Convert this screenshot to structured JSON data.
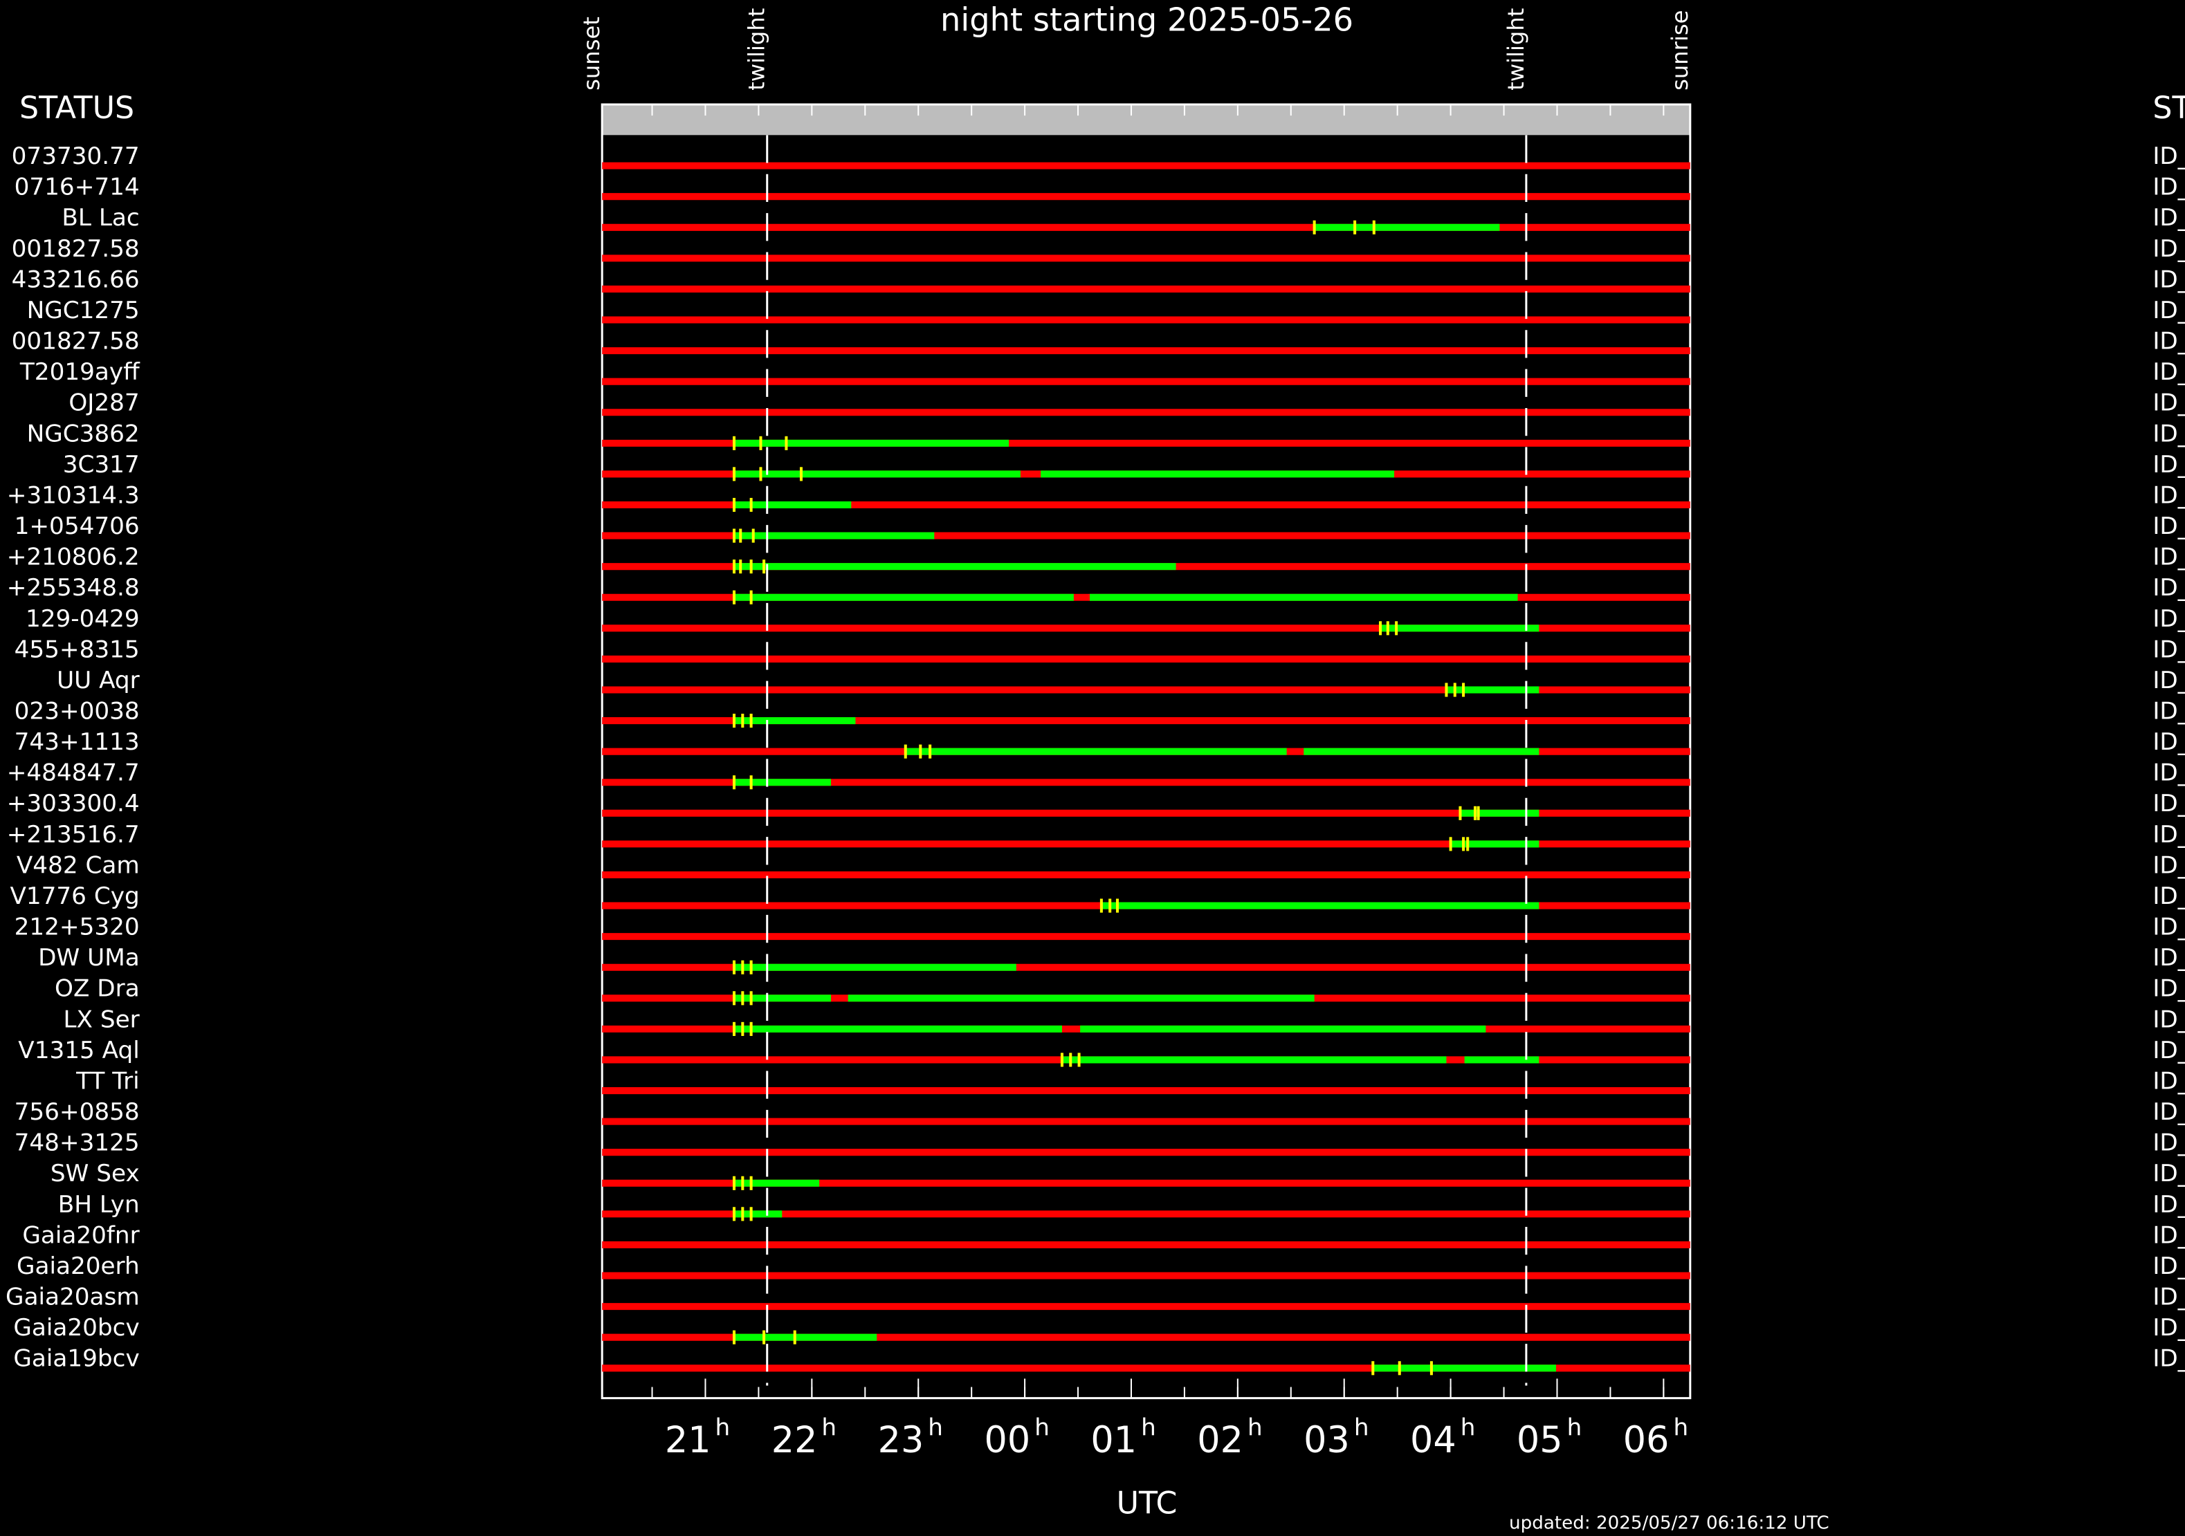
{
  "chart_data": {
    "type": "gantt",
    "title": "night starting 2025-05-26",
    "left_header": "STATUS",
    "right_header": "ST",
    "xlabel": "UTC",
    "footer": "updated: 2025/05/27 06:16:12 UTC",
    "tick_suffix": "h",
    "xlim": [
      20.03,
      30.25
    ],
    "xticks": [
      21,
      22,
      23,
      {
        "value": 24,
        "label": "00"
      },
      {
        "value": 25,
        "label": "01"
      },
      {
        "value": 26,
        "label": "02"
      },
      {
        "value": 27,
        "label": "03"
      },
      {
        "value": 28,
        "label": "04"
      },
      {
        "value": 29,
        "label": "05"
      },
      {
        "value": 30,
        "label": "06"
      }
    ],
    "minor_xticks": [
      20.5,
      21,
      21.5,
      22,
      22.5,
      23,
      23.5,
      24,
      24.5,
      25,
      25.5,
      26,
      26.5,
      27,
      27.5,
      28,
      28.5,
      29,
      29.5,
      30
    ],
    "events": [
      {
        "label": "sunset",
        "value": 20.03
      },
      {
        "label": "twilight",
        "value": 21.58
      },
      {
        "label": "twilight",
        "value": 28.71
      },
      {
        "label": "sunrise",
        "value": 30.25
      }
    ],
    "background_color": "#ff0000",
    "window_color": "#00ff00",
    "marker_color": "#ffff00",
    "rows": [
      {
        "name": "073730.77",
        "status": "ID_",
        "windows": [],
        "markers": []
      },
      {
        "name": "0716+714",
        "status": "ID_",
        "windows": [],
        "markers": []
      },
      {
        "name": "BL Lac",
        "status": "ID_",
        "windows": [
          [
            26.72,
            28.46
          ]
        ],
        "markers": [
          26.72,
          27.1,
          27.28
        ]
      },
      {
        "name": "001827.58",
        "status": "ID_",
        "windows": [],
        "markers": []
      },
      {
        "name": "433216.66",
        "status": "ID_",
        "windows": [],
        "markers": []
      },
      {
        "name": "NGC1275",
        "status": "ID_",
        "windows": [],
        "markers": []
      },
      {
        "name": "001827.58",
        "status": "ID_",
        "windows": [],
        "markers": []
      },
      {
        "name": "T2019ayff",
        "status": "ID_",
        "windows": [],
        "markers": []
      },
      {
        "name": "OJ287",
        "status": "ID_",
        "windows": [],
        "markers": []
      },
      {
        "name": "NGC3862",
        "status": "ID_",
        "windows": [
          [
            21.27,
            23.85
          ]
        ],
        "markers": [
          21.27,
          21.52,
          21.76
        ]
      },
      {
        "name": "3C317",
        "status": "ID_",
        "windows": [
          [
            21.27,
            23.96
          ],
          [
            24.15,
            27.47
          ]
        ],
        "markers": [
          21.27,
          21.52,
          21.9
        ]
      },
      {
        "name": "+310314.3",
        "status": "ID_",
        "windows": [
          [
            21.27,
            22.37
          ]
        ],
        "markers": [
          21.27,
          21.43
        ]
      },
      {
        "name": "1+054706",
        "status": "ID_",
        "windows": [
          [
            21.27,
            23.15
          ]
        ],
        "markers": [
          21.27,
          21.33,
          21.45
        ]
      },
      {
        "name": "+210806.2",
        "status": "ID_",
        "windows": [
          [
            21.27,
            25.42
          ]
        ],
        "markers": [
          21.27,
          21.33,
          21.43,
          21.55
        ]
      },
      {
        "name": "+255348.8",
        "status": "ID_",
        "windows": [
          [
            21.27,
            24.46
          ],
          [
            24.61,
            28.63
          ]
        ],
        "markers": [
          21.27,
          21.43
        ]
      },
      {
        "name": "129-0429",
        "status": "ID_",
        "windows": [
          [
            27.34,
            28.83
          ]
        ],
        "markers": [
          27.34,
          27.41,
          27.49
        ]
      },
      {
        "name": "455+8315",
        "status": "ID_",
        "windows": [],
        "markers": []
      },
      {
        "name": "UU Aqr",
        "status": "ID_",
        "windows": [
          [
            27.96,
            28.83
          ]
        ],
        "markers": [
          27.96,
          28.04,
          28.12
        ]
      },
      {
        "name": "023+0038",
        "status": "ID_",
        "windows": [
          [
            21.27,
            22.41
          ]
        ],
        "markers": [
          21.27,
          21.35,
          21.43
        ]
      },
      {
        "name": "743+1113",
        "status": "ID_",
        "windows": [
          [
            22.88,
            26.46
          ],
          [
            26.62,
            28.83
          ]
        ],
        "markers": [
          22.88,
          23.02,
          23.11
        ]
      },
      {
        "name": "+484847.7",
        "status": "ID_",
        "windows": [
          [
            21.27,
            22.18
          ]
        ],
        "markers": [
          21.27,
          21.43
        ]
      },
      {
        "name": "+303300.4",
        "status": "ID_",
        "windows": [
          [
            28.09,
            28.83
          ]
        ],
        "markers": [
          28.09,
          28.23,
          28.26
        ]
      },
      {
        "name": "+213516.7",
        "status": "ID_",
        "windows": [
          [
            28.0,
            28.83
          ]
        ],
        "markers": [
          28.0,
          28.12,
          28.16
        ]
      },
      {
        "name": "V482 Cam",
        "status": "ID_",
        "windows": [],
        "markers": []
      },
      {
        "name": "V1776 Cyg",
        "status": "ID_",
        "windows": [
          [
            24.72,
            28.83
          ]
        ],
        "markers": [
          24.72,
          24.8,
          24.87
        ]
      },
      {
        "name": "212+5320",
        "status": "ID_",
        "windows": [],
        "markers": []
      },
      {
        "name": "DW UMa",
        "status": "ID_",
        "windows": [
          [
            21.27,
            23.92
          ]
        ],
        "markers": [
          21.27,
          21.35,
          21.43
        ]
      },
      {
        "name": "OZ Dra",
        "status": "ID_",
        "windows": [
          [
            21.27,
            22.18
          ],
          [
            22.34,
            26.72
          ]
        ],
        "markers": [
          21.27,
          21.35,
          21.43
        ]
      },
      {
        "name": "LX Ser",
        "status": "ID_",
        "windows": [
          [
            21.27,
            24.35
          ],
          [
            24.52,
            28.33
          ]
        ],
        "markers": [
          21.27,
          21.35,
          21.43
        ]
      },
      {
        "name": "V1315 Aql",
        "status": "ID_",
        "windows": [
          [
            24.35,
            27.96
          ],
          [
            28.13,
            28.83
          ]
        ],
        "markers": [
          24.35,
          24.43,
          24.51
        ]
      },
      {
        "name": "TT Tri",
        "status": "ID_",
        "windows": [],
        "markers": []
      },
      {
        "name": "756+0858",
        "status": "ID_",
        "windows": [],
        "markers": []
      },
      {
        "name": "748+3125",
        "status": "ID_",
        "windows": [],
        "markers": []
      },
      {
        "name": "SW Sex",
        "status": "ID_",
        "windows": [
          [
            21.27,
            22.07
          ]
        ],
        "markers": [
          21.27,
          21.35,
          21.43
        ]
      },
      {
        "name": "BH Lyn",
        "status": "ID_",
        "windows": [
          [
            21.27,
            21.72
          ]
        ],
        "markers": [
          21.27,
          21.35,
          21.43
        ]
      },
      {
        "name": "Gaia20fnr",
        "status": "ID_",
        "windows": [],
        "markers": []
      },
      {
        "name": "Gaia20erh",
        "status": "ID_",
        "windows": [],
        "markers": []
      },
      {
        "name": "Gaia20asm",
        "status": "ID_",
        "windows": [],
        "markers": []
      },
      {
        "name": "Gaia20bcv",
        "status": "ID_",
        "windows": [
          [
            21.27,
            22.61
          ]
        ],
        "markers": [
          21.27,
          21.55,
          21.84
        ]
      },
      {
        "name": "Gaia19bcv",
        "status": "ID_",
        "windows": [
          [
            27.27,
            28.99
          ]
        ],
        "markers": [
          27.27,
          27.52,
          27.82
        ]
      }
    ]
  }
}
